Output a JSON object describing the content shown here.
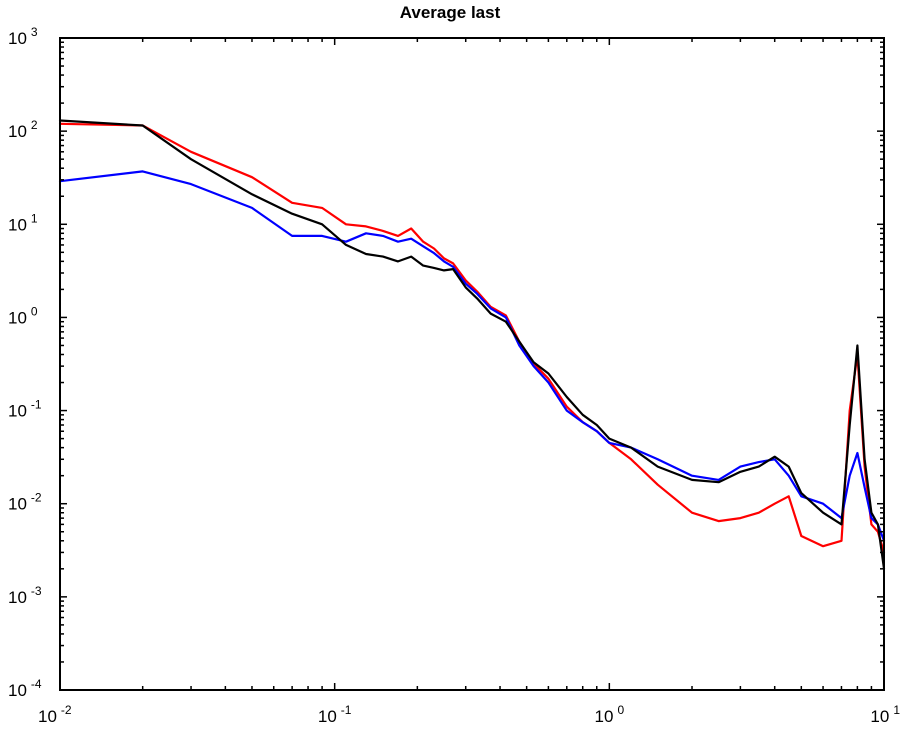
{
  "chart_data": {
    "type": "line",
    "title": "Average last",
    "xlabel": "",
    "ylabel": "",
    "xscale": "log",
    "yscale": "log",
    "xlim": [
      0.01,
      10
    ],
    "ylim": [
      0.0001,
      1000
    ],
    "grid": false,
    "legend": "none",
    "x_ticks": [
      {
        "base": "10",
        "exp": "-2",
        "value": 0.01
      },
      {
        "base": "10",
        "exp": "-1",
        "value": 0.1
      },
      {
        "base": "10",
        "exp": "0",
        "value": 1
      },
      {
        "base": "10",
        "exp": "1",
        "value": 10
      }
    ],
    "y_ticks": [
      {
        "base": "10",
        "exp": "3",
        "value": 1000
      },
      {
        "base": "10",
        "exp": "2",
        "value": 100
      },
      {
        "base": "10",
        "exp": "1",
        "value": 10
      },
      {
        "base": "10",
        "exp": "0",
        "value": 1
      },
      {
        "base": "10",
        "exp": "-1",
        "value": 0.1
      },
      {
        "base": "10",
        "exp": "-2",
        "value": 0.01
      },
      {
        "base": "10",
        "exp": "-3",
        "value": 0.001
      },
      {
        "base": "10",
        "exp": "-4",
        "value": 0.0001
      }
    ],
    "series": [
      {
        "color": "#ff0000",
        "x": [
          0.01,
          0.02,
          0.03,
          0.05,
          0.07,
          0.09,
          0.11,
          0.13,
          0.15,
          0.17,
          0.19,
          0.21,
          0.23,
          0.25,
          0.27,
          0.3,
          0.33,
          0.37,
          0.42,
          0.47,
          0.53,
          0.6,
          0.7,
          0.8,
          0.9,
          1.0,
          1.2,
          1.5,
          2.0,
          2.5,
          3.0,
          3.5,
          4.0,
          4.5,
          5.0,
          6.0,
          7.0,
          7.5,
          8.0,
          8.5,
          9.0,
          9.5,
          10.0
        ],
        "y": [
          120,
          115,
          60,
          32,
          17,
          15,
          10,
          9.5,
          8.5,
          7.5,
          9,
          6.5,
          5.5,
          4.3,
          3.8,
          2.5,
          1.9,
          1.3,
          1.05,
          0.55,
          0.32,
          0.22,
          0.11,
          0.075,
          0.06,
          0.045,
          0.03,
          0.016,
          0.008,
          0.0065,
          0.007,
          0.008,
          0.01,
          0.012,
          0.0045,
          0.0035,
          0.004,
          0.1,
          0.4,
          0.025,
          0.006,
          0.005,
          0.003
        ]
      },
      {
        "color": "#0000ff",
        "x": [
          0.01,
          0.02,
          0.03,
          0.05,
          0.07,
          0.09,
          0.11,
          0.13,
          0.15,
          0.17,
          0.19,
          0.21,
          0.23,
          0.25,
          0.27,
          0.3,
          0.33,
          0.37,
          0.42,
          0.47,
          0.53,
          0.6,
          0.7,
          0.8,
          0.9,
          1.0,
          1.2,
          1.5,
          2.0,
          2.5,
          3.0,
          3.5,
          4.0,
          4.5,
          5.0,
          6.0,
          7.0,
          7.5,
          8.0,
          8.5,
          9.0,
          9.5,
          10.0
        ],
        "y": [
          29,
          37,
          27,
          15,
          7.5,
          7.5,
          6.5,
          8,
          7.5,
          6.5,
          7,
          5.8,
          4.9,
          4.0,
          3.5,
          2.3,
          1.8,
          1.25,
          1.0,
          0.5,
          0.3,
          0.2,
          0.1,
          0.075,
          0.06,
          0.045,
          0.04,
          0.03,
          0.02,
          0.018,
          0.025,
          0.028,
          0.03,
          0.02,
          0.012,
          0.01,
          0.007,
          0.02,
          0.035,
          0.015,
          0.007,
          0.006,
          0.004
        ]
      },
      {
        "color": "#000000",
        "x": [
          0.01,
          0.02,
          0.03,
          0.05,
          0.07,
          0.09,
          0.11,
          0.13,
          0.15,
          0.17,
          0.19,
          0.21,
          0.23,
          0.25,
          0.27,
          0.3,
          0.33,
          0.37,
          0.42,
          0.47,
          0.53,
          0.6,
          0.7,
          0.8,
          0.9,
          1.0,
          1.2,
          1.5,
          2.0,
          2.5,
          3.0,
          3.5,
          4.0,
          4.5,
          5.0,
          6.0,
          7.0,
          7.5,
          8.0,
          8.5,
          9.0,
          9.5,
          10.0
        ],
        "y": [
          130,
          115,
          50,
          21,
          13,
          10,
          6,
          4.8,
          4.5,
          4.0,
          4.5,
          3.6,
          3.4,
          3.2,
          3.3,
          2.1,
          1.6,
          1.1,
          0.9,
          0.55,
          0.33,
          0.25,
          0.14,
          0.09,
          0.07,
          0.05,
          0.04,
          0.025,
          0.018,
          0.017,
          0.022,
          0.025,
          0.032,
          0.025,
          0.013,
          0.008,
          0.006,
          0.07,
          0.5,
          0.03,
          0.008,
          0.006,
          0.002
        ]
      }
    ]
  }
}
